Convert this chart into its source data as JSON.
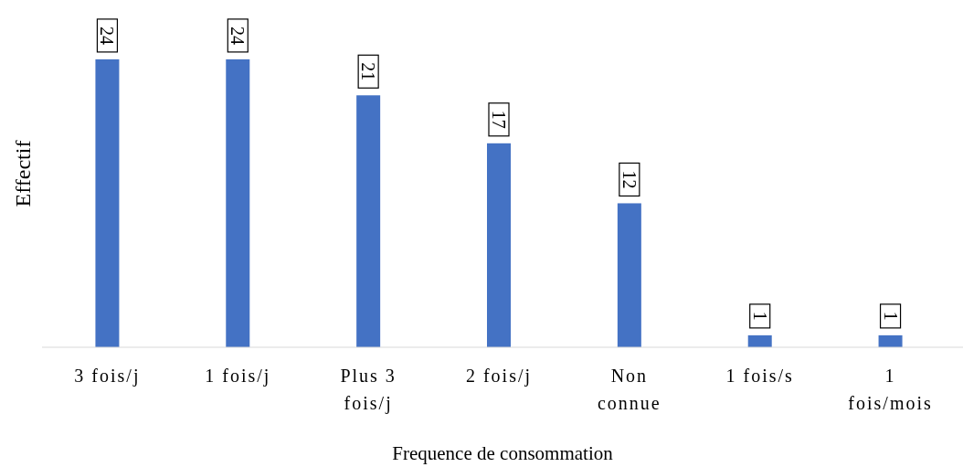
{
  "chart_data": {
    "type": "bar",
    "xlabel": "Frequence de consommation",
    "ylabel": "Effectif",
    "categories": [
      "3 fois/j",
      "1 fois/j",
      "Plus 3 fois/j",
      "2 fois/j",
      "Non connue",
      "1 fois/s",
      "1 fois/mois"
    ],
    "values": [
      24,
      24,
      21,
      17,
      12,
      1,
      1
    ],
    "color": "#4472c4",
    "data_labels": true
  }
}
